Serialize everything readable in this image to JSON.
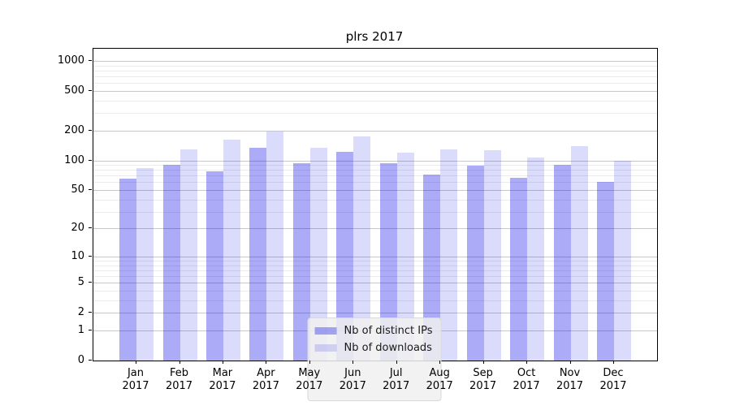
{
  "title": "plrs 2017",
  "chart_data": {
    "type": "bar",
    "title": "plrs 2017",
    "categories": [
      "Jan 2017",
      "Feb 2017",
      "Mar 2017",
      "Apr 2017",
      "May 2017",
      "Jun 2017",
      "Jul 2017",
      "Aug 2017",
      "Sep 2017",
      "Oct 2017",
      "Nov 2017",
      "Dec 2017"
    ],
    "series": [
      {
        "name": "Nb of distinct IPs",
        "color": "rgba(0,0,235,0.33)",
        "values": [
          65,
          90,
          78,
          133,
          94,
          123,
          93,
          72,
          89,
          67,
          91,
          61
        ]
      },
      {
        "name": "Nb of downloads",
        "color": "rgba(0,0,235,0.14)",
        "values": [
          83,
          130,
          162,
          196,
          135,
          173,
          120,
          129,
          127,
          107,
          139,
          100
        ]
      }
    ],
    "xlabel": "",
    "ylabel": "",
    "yscale": "log1p",
    "ylim": [
      0,
      1000
    ],
    "yticks": [
      0,
      1,
      2,
      5,
      10,
      20,
      50,
      100,
      200,
      500,
      1000
    ],
    "yticks_minor": [
      3,
      4,
      6,
      7,
      8,
      9,
      30,
      40,
      60,
      70,
      80,
      90,
      300,
      400,
      600,
      700,
      800,
      900
    ],
    "grid": "both",
    "legend_position": "lower center",
    "colors": {
      "grid_major": "#c8c8c8",
      "grid_minor": "#ebebeb",
      "spine": "#000000"
    }
  }
}
